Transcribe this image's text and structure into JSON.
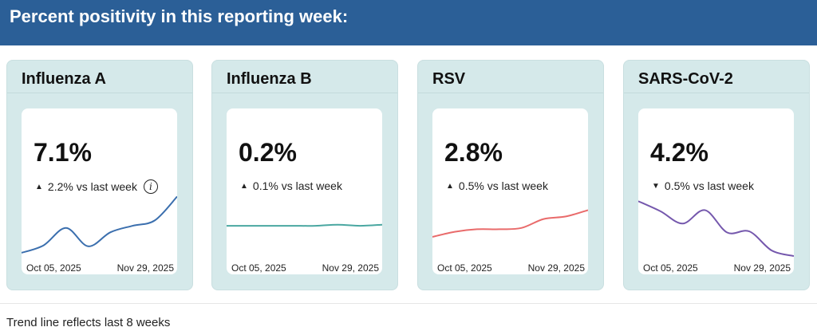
{
  "header": {
    "title": "Percent positivity in this reporting week:"
  },
  "footer": {
    "note": "Trend line reflects last 8 weeks"
  },
  "chart_data": [
    {
      "type": "line",
      "title": "Influenza A",
      "value": "7.1%",
      "change": "2.2% vs last week",
      "direction": "up",
      "has_info": true,
      "color": "#3b6fae",
      "x_start": "Oct 05, 2025",
      "x_end": "Nov 29, 2025",
      "values": [
        1.9,
        2.6,
        4.2,
        2.5,
        3.8,
        4.4,
        4.9,
        7.1
      ],
      "ylim": [
        1.6,
        7.5
      ]
    },
    {
      "type": "line",
      "title": "Influenza B",
      "value": "0.2%",
      "change": "0.1% vs last week",
      "direction": "up",
      "has_info": false,
      "color": "#4aa7a1",
      "x_start": "Oct 05, 2025",
      "x_end": "Nov 29, 2025",
      "values": [
        0.1,
        0.1,
        0.1,
        0.1,
        0.1,
        0.2,
        0.1,
        0.2
      ],
      "ylim": [
        -2.6,
        3.1
      ]
    },
    {
      "type": "line",
      "title": "RSV",
      "value": "2.8%",
      "change": "0.5% vs last week",
      "direction": "up",
      "has_info": false,
      "color": "#e96b6b",
      "x_start": "Oct 05, 2025",
      "x_end": "Nov 29, 2025",
      "values": [
        0.7,
        1.1,
        1.3,
        1.3,
        1.4,
        2.1,
        2.3,
        2.8
      ],
      "ylim": [
        -0.8,
        4.2
      ]
    },
    {
      "type": "line",
      "title": "SARS-CoV-2",
      "value": "4.2%",
      "change": "0.5% vs last week",
      "direction": "down",
      "has_info": false,
      "color": "#7558ad",
      "x_start": "Oct 05, 2025",
      "x_end": "Nov 29, 2025",
      "values": [
        9.1,
        8.2,
        7.1,
        8.3,
        6.3,
        6.4,
        4.7,
        4.2
      ],
      "ylim": [
        4.2,
        9.9
      ]
    }
  ]
}
